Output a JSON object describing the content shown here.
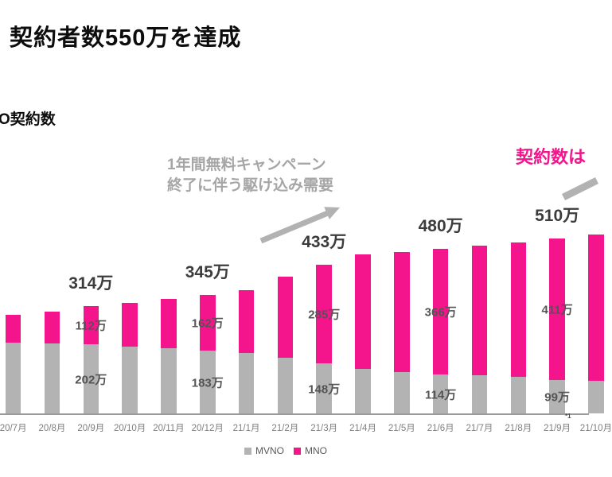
{
  "title": "契約者数550万を達成",
  "section_label": "O契約数",
  "annotation": {
    "line1": "1年間無料キャンペーン",
    "line2": "終了に伴う駆け込み需要"
  },
  "headline": "契約数は",
  "footnote": "*1",
  "colors": {
    "mno_magenta": "#f4148b",
    "mvno_gray": "#b3b3b3",
    "annotation_gray": "#a6a6a6",
    "arrow_gray": "#b2b2b2",
    "axis_label_gray": "#7f7f7f",
    "total_label": "#3c3c3c"
  },
  "legend": {
    "items": [
      {
        "label": "MVNO",
        "color": "#b3b3b3"
      },
      {
        "label": "MNO",
        "color": "#f4148b"
      }
    ]
  },
  "chart_data": {
    "type": "bar",
    "stacked": true,
    "unit": "万",
    "title": "O契約数",
    "xlabel": "",
    "ylabel": "",
    "ylim": [
      0,
      560
    ],
    "grid": false,
    "legend_position": "bottom",
    "categories": [
      "20/7月",
      "20/8月",
      "20/9月",
      "20/10月",
      "20/11月",
      "20/12月",
      "21/1月",
      "21/2月",
      "21/3月",
      "21/4月",
      "21/5月",
      "21/6月",
      "21/7月",
      "21/8月",
      "21/9月",
      "21/10月"
    ],
    "series": [
      {
        "name": "MVNO",
        "color": "#b3b3b3",
        "values": [
          208,
          205,
          202,
          196,
          191,
          183,
          176,
          164,
          148,
          131,
          122,
          114,
          112,
          108,
          99,
          97
        ]
      },
      {
        "name": "MNO",
        "color": "#f4148b",
        "values": [
          81,
          92,
          112,
          127,
          143,
          162,
          185,
          235,
          285,
          333,
          349,
          366,
          377,
          391,
          411,
          425
        ]
      }
    ],
    "value_labels": [
      {
        "index": 2,
        "total": "314万",
        "mno": "112万",
        "mvno": "202万"
      },
      {
        "index": 5,
        "total": "345万",
        "mno": "162万",
        "mvno": "183万"
      },
      {
        "index": 8,
        "total": "433万",
        "mno": "285万",
        "mvno": "148万"
      },
      {
        "index": 11,
        "total": "480万",
        "mno": "366万",
        "mvno": "114万"
      },
      {
        "index": 14,
        "total": "510万",
        "mno": "411万",
        "mvno": "99万"
      }
    ],
    "annotations": [
      "1年間無料キャンペーン終了に伴う駆け込み需要",
      "契約数は"
    ]
  }
}
